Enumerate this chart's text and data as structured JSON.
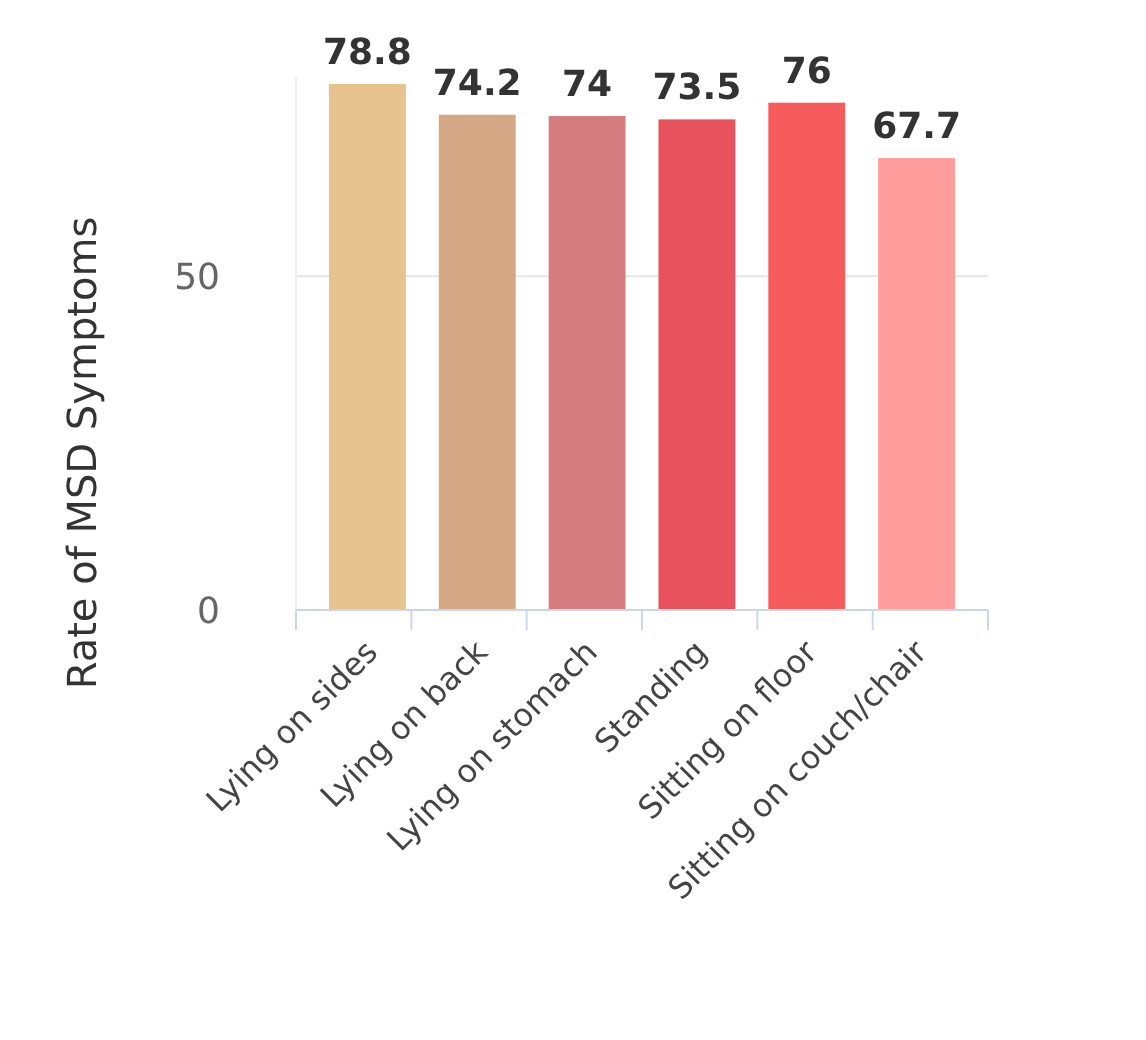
{
  "chart_data": {
    "type": "bar",
    "ylabel": "Rate of MSD Symptoms",
    "categories": [
      "Lying on sides",
      "Lying on back",
      "Lying on stomach",
      "Standing",
      "Sitting on floor",
      "Sitting on couch/chair"
    ],
    "values": [
      78.8,
      74.2,
      74,
      73.5,
      76,
      67.7
    ],
    "colors": [
      "#e6c28f",
      "#d6a784",
      "#d47c7f",
      "#e8525c",
      "#f65c5c",
      "#ff9c9c"
    ],
    "ylim": [
      0,
      80
    ],
    "yticks": [
      0,
      50
    ],
    "grid": "y",
    "data_labels": true
  }
}
